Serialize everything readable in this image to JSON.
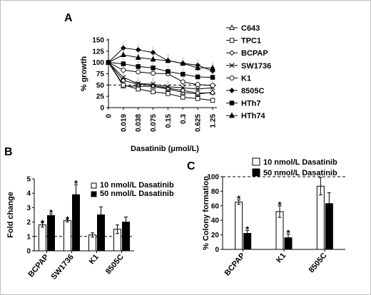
{
  "colors": {
    "white_bar": "#ffffff",
    "black_bar": "#000000",
    "line": "#000000",
    "dashed": "#000000",
    "frame": "#bfbfbf"
  },
  "chart_data": [
    {
      "panel": "A",
      "type": "line",
      "xlabel": "Dasatinib (μmol/L)",
      "ylabel": "% growth",
      "x": [
        "0",
        "0.019",
        "0.038",
        "0.075",
        "0.15",
        "0.3",
        "0.625",
        "1.25"
      ],
      "ylim": [
        0,
        150
      ],
      "yticks": [
        "0",
        "25",
        "50",
        "75",
        "100",
        "125",
        "150"
      ],
      "reference_line": 50,
      "series": [
        {
          "name": "C643",
          "marker": "triangle-open",
          "values": [
            100,
            48,
            47,
            47,
            41,
            34,
            30,
            34
          ]
        },
        {
          "name": "TPC1",
          "marker": "square-open",
          "values": [
            100,
            50,
            41,
            35,
            31,
            23,
            20,
            16
          ]
        },
        {
          "name": "BCPAP",
          "marker": "diamond-open",
          "values": [
            100,
            60,
            52,
            49,
            43,
            38,
            32,
            33
          ]
        },
        {
          "name": "SW1736",
          "marker": "x",
          "values": [
            100,
            67,
            53,
            52,
            46,
            44,
            41,
            44
          ]
        },
        {
          "name": "K1",
          "marker": "circle-open",
          "values": [
            100,
            83,
            79,
            76,
            75,
            57,
            51,
            49
          ]
        },
        {
          "name": "8505C",
          "marker": "diamond-filled",
          "values": [
            100,
            132,
            128,
            122,
            104,
            98,
            94,
            81
          ]
        },
        {
          "name": "HTh7",
          "marker": "square-filled",
          "values": [
            100,
            97,
            91,
            88,
            80,
            74,
            68,
            67
          ]
        },
        {
          "name": "HTh74",
          "marker": "triangle-filled",
          "values": [
            100,
            117,
            111,
            107,
            104,
            98,
            88,
            88
          ]
        }
      ]
    },
    {
      "panel": "B",
      "type": "bar",
      "ylabel": "Fold change",
      "categories": [
        "BCPAP",
        "SW1736",
        "K1",
        "8505C"
      ],
      "ylim": [
        0,
        5
      ],
      "yticks": [
        "0",
        "1",
        "2",
        "3",
        "4",
        "5"
      ],
      "reference_line": 1,
      "series": [
        {
          "name": "10 nmol/L Dasatinib",
          "fill": "white",
          "values": [
            1.8,
            2.1,
            1.1,
            1.5
          ],
          "errors": [
            0.15,
            0.1,
            0.15,
            0.3
          ],
          "stars": [
            "*",
            "*",
            "",
            ""
          ]
        },
        {
          "name": "50 nmol/L Dasatinib",
          "fill": "black",
          "values": [
            2.45,
            3.9,
            2.5,
            2.0
          ],
          "errors": [
            0.12,
            0.7,
            0.55,
            0.35
          ],
          "stars": [
            "*",
            "*",
            "",
            ""
          ]
        }
      ]
    },
    {
      "panel": "C",
      "type": "bar",
      "ylabel": "% Colony  formation",
      "categories": [
        "BCPAP",
        "K1",
        "8505C"
      ],
      "ylim": [
        0,
        100
      ],
      "yticks": [
        "0",
        "20",
        "40",
        "60",
        "80",
        "100"
      ],
      "reference_line": 100,
      "series": [
        {
          "name": "10 nmol/L Dasatinib",
          "fill": "white",
          "values": [
            65,
            52,
            87
          ],
          "errors": [
            3,
            8,
            12
          ],
          "stars": [
            "*",
            "*",
            ""
          ]
        },
        {
          "name": "50 nmol/L Dasatinib",
          "fill": "black",
          "values": [
            22,
            16,
            63
          ],
          "errors": [
            4,
            5,
            15
          ],
          "stars": [
            "*",
            "*",
            ""
          ]
        }
      ]
    }
  ]
}
